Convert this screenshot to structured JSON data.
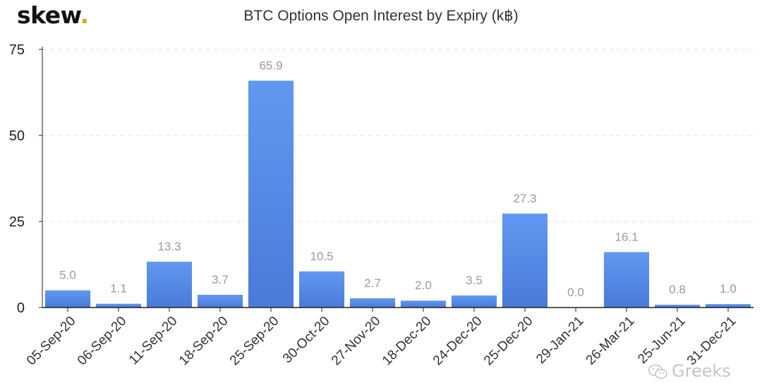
{
  "logo": {
    "text": "skew",
    "dot": "."
  },
  "title": "BTC Options Open Interest by Expiry (k฿)",
  "watermark": "Greeks",
  "colors": {
    "bar_top": "#6198f2",
    "bar_bottom": "#4a7ad8",
    "label": "#9a9a9a",
    "axis": "#222222",
    "grid": "#e2e2e2"
  },
  "chart_data": {
    "type": "bar",
    "title": "BTC Options Open Interest by Expiry (k฿)",
    "xlabel": "",
    "ylabel": "",
    "categories": [
      "05-Sep-20",
      "06-Sep-20",
      "11-Sep-20",
      "18-Sep-20",
      "25-Sep-20",
      "30-Oct-20",
      "27-Nov-20",
      "18-Dec-20",
      "24-Dec-20",
      "25-Dec-20",
      "29-Jan-21",
      "26-Mar-21",
      "25-Jun-21",
      "31-Dec-21"
    ],
    "values": [
      5.0,
      1.1,
      13.3,
      3.7,
      65.9,
      10.5,
      2.7,
      2.0,
      3.5,
      27.3,
      0.0,
      16.1,
      0.8,
      1.0
    ],
    "value_labels": [
      "5.0",
      "1.1",
      "13.3",
      "3.7",
      "65.9",
      "10.5",
      "2.7",
      "2.0",
      "3.5",
      "27.3",
      "0.0",
      "16.1",
      "0.8",
      "1.0"
    ],
    "ylim": [
      0,
      75
    ],
    "yticks": [
      0,
      25,
      50,
      75
    ],
    "grid": true,
    "grid_style": "dashed"
  }
}
